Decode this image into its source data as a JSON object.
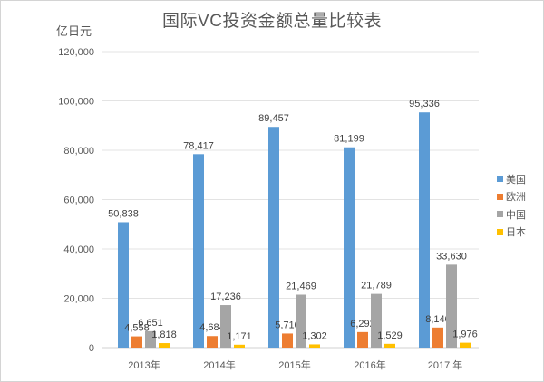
{
  "chart": {
    "title": "国际VC投资金额总量比较表",
    "unit_label": "亿日元"
  },
  "chart_data": {
    "type": "bar",
    "title": "国际VC投资金额总量比较表",
    "xlabel": "",
    "ylabel": "亿日元",
    "categories": [
      "2013年",
      "2014年",
      "2015年",
      "2016年",
      "2017 年"
    ],
    "series": [
      {
        "name": "美国",
        "color": "#5B9BD5",
        "values": [
          50838,
          78417,
          89457,
          81199,
          95336
        ],
        "labels": [
          "50,838",
          "78,417",
          "89,457",
          "81,199",
          "95,336"
        ]
      },
      {
        "name": "欧洲",
        "color": "#ED7D31",
        "values": [
          4558,
          4684,
          5710,
          6292,
          8140
        ],
        "labels": [
          "4,558",
          "4,684",
          "5,710",
          "6,292",
          "8,140"
        ]
      },
      {
        "name": "中国",
        "color": "#A5A5A5",
        "values": [
          6651,
          17236,
          21469,
          21789,
          33630
        ],
        "labels": [
          "6,651",
          "17,236",
          "21,469",
          "21,789",
          "33,630"
        ]
      },
      {
        "name": "日本",
        "color": "#FFC000",
        "values": [
          1818,
          1171,
          1302,
          1529,
          1976
        ],
        "labels": [
          "1,818",
          "1,171",
          "1,302",
          "1,529",
          "1,976"
        ]
      }
    ],
    "ylim": [
      0,
      120000
    ],
    "yticks": [
      0,
      20000,
      40000,
      60000,
      80000,
      100000,
      120000
    ],
    "ytick_labels": [
      "0",
      "20,000",
      "40,000",
      "60,000",
      "80,000",
      "100,000",
      "120,000"
    ],
    "grid": true,
    "legend_position": "right"
  }
}
